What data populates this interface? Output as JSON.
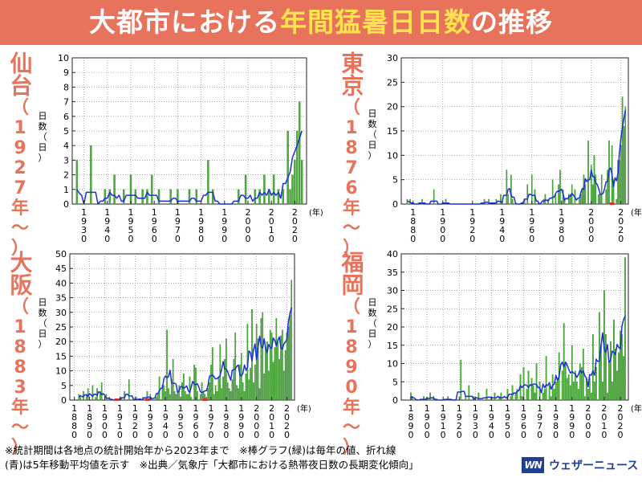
{
  "header": {
    "title_prefix": "大都市における",
    "title_highlight": "年間猛暑日日数",
    "title_suffix": "の推移"
  },
  "labels": {
    "y_unit": [
      "日",
      "数",
      "（",
      "日",
      "）"
    ],
    "x_unit": "(年)"
  },
  "colors": {
    "header_bg": "#e8735c",
    "title_highlight": "#ffe44d",
    "bar": "#4daa3d",
    "bar_edge": "#2d7f24",
    "line": "#1a30d8",
    "missing_marker": "#d8302a",
    "brand": "#1f3f93"
  },
  "footnote": {
    "line1": "※統計期間は各地点の統計開始年から2023年まで　※棒グラフ(緑)は毎年の値、折れ線",
    "line2": "(青)は5年移動平均値を示す　※出典／気象庁「大都市における熱帯夜日数の長期変化傾向」"
  },
  "brand": {
    "logo": "WN",
    "name": "ウェザーニュース"
  },
  "chart_data": [
    {
      "id": "sendai",
      "type": "bar",
      "city": "仙台",
      "start_label": [
        "（",
        "1",
        "9",
        "2",
        "7",
        "年",
        "～",
        "）"
      ],
      "xlim": [
        1925,
        2025
      ],
      "ylim": [
        0,
        10
      ],
      "yticks": [
        0,
        1,
        2,
        3,
        4,
        5,
        6,
        7,
        8,
        9,
        10
      ],
      "xtick_years": [
        1930,
        1940,
        1950,
        1960,
        1970,
        1980,
        1990,
        2000,
        2010,
        2020
      ],
      "xtick_labels": [
        [
          "1",
          "9",
          "3",
          "0"
        ],
        [
          "1",
          "9",
          "4",
          "0"
        ],
        [
          "1",
          "9",
          "5",
          "0"
        ],
        [
          "1",
          "9",
          "6",
          "0"
        ],
        [
          "1",
          "9",
          "7",
          "0"
        ],
        [
          "1",
          "9",
          "8",
          "0"
        ],
        [
          "1",
          "9",
          "9",
          "0"
        ],
        [
          "2",
          "0",
          "0",
          "0"
        ],
        [
          "2",
          "0",
          "1",
          "0"
        ],
        [
          "2",
          "0",
          "2",
          "0"
        ]
      ],
      "years": [
        1927,
        2023
      ],
      "values": [
        3,
        0,
        0,
        0,
        0,
        0,
        4,
        0,
        0,
        0,
        0,
        0,
        1,
        0,
        1,
        0,
        2,
        0,
        0,
        0,
        1,
        0,
        0,
        2,
        0,
        1,
        0,
        0,
        1,
        0,
        1,
        0,
        2,
        0,
        0,
        1,
        0,
        0,
        0,
        0,
        1,
        0,
        0,
        1,
        0,
        0,
        0,
        0,
        1,
        0,
        0,
        1,
        0,
        0,
        0,
        0,
        3,
        0,
        1,
        0,
        0,
        0,
        0,
        0,
        0,
        0,
        0,
        0,
        0,
        1,
        0,
        0,
        2,
        0,
        0,
        0,
        1,
        0,
        1,
        0,
        2,
        0,
        1,
        0,
        2,
        0,
        1,
        0,
        1,
        0,
        5,
        1,
        2,
        3,
        5,
        7,
        3
      ],
      "missing_years": []
    },
    {
      "id": "tokyo",
      "type": "bar",
      "city": "東京",
      "start_label": [
        "（",
        "1",
        "8",
        "7",
        "6",
        "年",
        "～",
        "）"
      ],
      "xlim": [
        1872,
        2025
      ],
      "ylim": [
        0,
        30
      ],
      "yticks": [
        0,
        5,
        10,
        15,
        20,
        25,
        30
      ],
      "xtick_years": [
        1880,
        1900,
        1920,
        1940,
        1960,
        1980,
        2000,
        2020
      ],
      "xtick_labels": [
        [
          "1",
          "8",
          "8",
          "0"
        ],
        [
          "1",
          "9",
          "0",
          "0"
        ],
        [
          "1",
          "9",
          "2",
          "0"
        ],
        [
          "1",
          "9",
          "4",
          "0"
        ],
        [
          "1",
          "9",
          "6",
          "0"
        ],
        [
          "1",
          "9",
          "8",
          "0"
        ],
        [
          "2",
          "0",
          "0",
          "0"
        ],
        [
          "2",
          "0",
          "2",
          "0"
        ]
      ],
      "years": [
        1876,
        2023
      ],
      "values": [
        1,
        0,
        1,
        0,
        0,
        0,
        0,
        0,
        0,
        0,
        1,
        0,
        0,
        0,
        0,
        0,
        0,
        0,
        3,
        0,
        0,
        0,
        0,
        0,
        0,
        0,
        1,
        0,
        0,
        0,
        0,
        0,
        0,
        0,
        0,
        0,
        0,
        0,
        0,
        0,
        0,
        0,
        0,
        0,
        0,
        0,
        0,
        0,
        0,
        0,
        0,
        0,
        1,
        0,
        0,
        1,
        0,
        0,
        0,
        0,
        1,
        0,
        0,
        2,
        0,
        0,
        0,
        7,
        2,
        0,
        6,
        1,
        0,
        0,
        0,
        0,
        0,
        0,
        0,
        1,
        0,
        4,
        0,
        0,
        6,
        0,
        3,
        0,
        0,
        0,
        0,
        0,
        1,
        2,
        0,
        1,
        0,
        0,
        5,
        0,
        2,
        0,
        4,
        7,
        0,
        3,
        1,
        0,
        0,
        2,
        2,
        4,
        0,
        3,
        0,
        0,
        1,
        2,
        3,
        6,
        4,
        0,
        13,
        0,
        8,
        4,
        10,
        6,
        0,
        2,
        2,
        6,
        0,
        0,
        3,
        7,
        13,
        0,
        12,
        5,
        0,
        1,
        9,
        9,
        12,
        22,
        16,
        20
      ],
      "missing_years": [
        2014
      ]
    },
    {
      "id": "osaka",
      "type": "bar",
      "city": "大阪",
      "start_label": [
        "（",
        "1",
        "8",
        "8",
        "3",
        "年",
        "～",
        "）"
      ],
      "xlim": [
        1877,
        2025
      ],
      "ylim": [
        0,
        50
      ],
      "yticks": [
        0,
        5,
        10,
        15,
        20,
        25,
        30,
        35,
        40,
        45,
        50
      ],
      "xtick_years": [
        1880,
        1890,
        1900,
        1910,
        1920,
        1930,
        1940,
        1950,
        1960,
        1970,
        1980,
        1990,
        2000,
        2010,
        2020
      ],
      "xtick_labels": [
        [
          "1",
          "8",
          "8",
          "0"
        ],
        [
          "1",
          "8",
          "9",
          "0"
        ],
        [
          "1",
          "9",
          "0",
          "0"
        ],
        [
          "1",
          "9",
          "1",
          "0"
        ],
        [
          "1",
          "9",
          "2",
          "0"
        ],
        [
          "1",
          "9",
          "3",
          "0"
        ],
        [
          "1",
          "9",
          "4",
          "0"
        ],
        [
          "1",
          "9",
          "5",
          "0"
        ],
        [
          "1",
          "9",
          "6",
          "0"
        ],
        [
          "1",
          "9",
          "7",
          "0"
        ],
        [
          "1",
          "9",
          "8",
          "0"
        ],
        [
          "1",
          "9",
          "9",
          "0"
        ],
        [
          "2",
          "0",
          "0",
          "0"
        ],
        [
          "2",
          "0",
          "1",
          "0"
        ],
        [
          "2",
          "0",
          "2",
          "0"
        ]
      ],
      "years": [
        1883,
        2023
      ],
      "values": [
        2,
        1,
        0,
        3,
        0,
        2,
        4,
        0,
        0,
        5,
        0,
        1,
        4,
        0,
        3,
        6,
        0,
        0,
        2,
        0,
        1,
        0,
        0,
        0,
        0,
        0,
        0,
        0,
        1,
        0,
        3,
        0,
        0,
        7,
        0,
        0,
        0,
        0,
        1,
        0,
        0,
        0,
        1,
        0,
        0,
        3,
        0,
        2,
        0,
        0,
        0,
        1,
        2,
        8,
        0,
        5,
        5,
        3,
        24,
        4,
        2,
        7,
        14,
        3,
        2,
        3,
        5,
        0,
        6,
        9,
        3,
        2,
        2,
        8,
        1,
        0,
        12,
        11,
        3,
        0,
        2,
        6,
        3,
        2,
        1,
        4,
        6,
        12,
        18,
        2,
        5,
        3,
        8,
        19,
        4,
        8,
        14,
        21,
        6,
        4,
        3,
        7,
        14,
        23,
        5,
        4,
        12,
        16,
        6,
        3,
        9,
        26,
        7,
        11,
        31,
        6,
        12,
        26,
        21,
        4,
        28,
        30,
        9,
        18,
        20,
        10,
        24,
        23,
        13,
        18,
        28,
        20,
        14,
        22,
        24,
        10,
        17,
        23,
        25,
        29,
        41
      ],
      "missing_years": [
        1908,
        1928,
        1966
      ]
    },
    {
      "id": "fukuoka",
      "type": "bar",
      "city": "福岡",
      "start_label": [
        "（",
        "1",
        "8",
        "9",
        "0",
        "年",
        "～",
        "）"
      ],
      "xlim": [
        1884,
        2025
      ],
      "ylim": [
        0,
        40
      ],
      "yticks": [
        0,
        5,
        10,
        15,
        20,
        25,
        30,
        35,
        40
      ],
      "xtick_years": [
        1890,
        1900,
        1910,
        1920,
        1930,
        1940,
        1950,
        1960,
        1970,
        1980,
        1990,
        2000,
        2010,
        2020
      ],
      "xtick_labels": [
        [
          "1",
          "8",
          "9",
          "0"
        ],
        [
          "1",
          "9",
          "0",
          "0"
        ],
        [
          "1",
          "9",
          "1",
          "0"
        ],
        [
          "1",
          "9",
          "2",
          "0"
        ],
        [
          "1",
          "9",
          "3",
          "0"
        ],
        [
          "1",
          "9",
          "4",
          "0"
        ],
        [
          "1",
          "9",
          "5",
          "0"
        ],
        [
          "1",
          "9",
          "6",
          "0"
        ],
        [
          "1",
          "9",
          "7",
          "0"
        ],
        [
          "1",
          "9",
          "8",
          "0"
        ],
        [
          "1",
          "9",
          "9",
          "0"
        ],
        [
          "2",
          "0",
          "0",
          "0"
        ],
        [
          "2",
          "0",
          "1",
          "0"
        ],
        [
          "2",
          "0",
          "2",
          "0"
        ]
      ],
      "years": [
        1890,
        2023
      ],
      "values": [
        2,
        1,
        0,
        0,
        0,
        0,
        0,
        0,
        1,
        0,
        0,
        0,
        2,
        0,
        1,
        0,
        0,
        0,
        0,
        0,
        0,
        0,
        0,
        1,
        0,
        0,
        0,
        0,
        0,
        0,
        0,
        11,
        0,
        0,
        1,
        0,
        4,
        0,
        0,
        1,
        0,
        0,
        2,
        0,
        0,
        0,
        0,
        3,
        0,
        0,
        1,
        0,
        2,
        0,
        0,
        1,
        2,
        0,
        0,
        0,
        3,
        0,
        1,
        4,
        0,
        2,
        3,
        0,
        7,
        1,
        9,
        0,
        3,
        8,
        0,
        6,
        4,
        2,
        10,
        0,
        5,
        0,
        2,
        3,
        12,
        0,
        4,
        1,
        7,
        3,
        5,
        6,
        13,
        0,
        8,
        21,
        10,
        6,
        7,
        4,
        15,
        5,
        8,
        5,
        3,
        10,
        9,
        14,
        1,
        6,
        3,
        6,
        2,
        18,
        5,
        9,
        0,
        24,
        15,
        5,
        30,
        18,
        2,
        10,
        16,
        5,
        22,
        14,
        8,
        13,
        19,
        18,
        12,
        39
      ],
      "missing_years": []
    }
  ]
}
